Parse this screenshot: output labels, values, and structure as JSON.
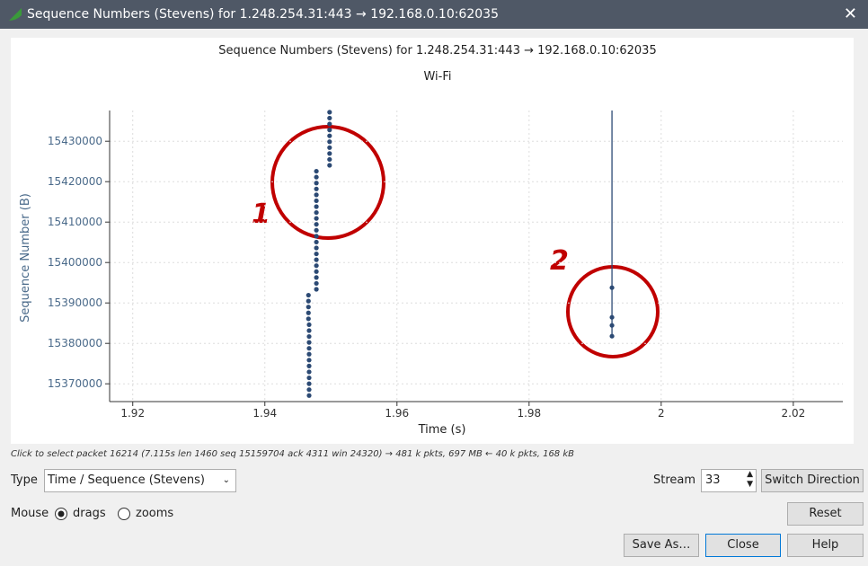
{
  "window": {
    "title": "Sequence Numbers (Stevens) for 1.248.254.31:443 → 192.168.0.10:62035"
  },
  "chart_data": {
    "type": "scatter",
    "title": "Sequence Numbers (Stevens) for 1.248.254.31:443 → 192.168.0.10:62035",
    "subtitle": "Wi-Fi",
    "x_label": "Time (s)",
    "y_label": "Sequence Number (B)",
    "xlim": [
      1.9165,
      2.0275
    ],
    "ylim": [
      15365600,
      15437600
    ],
    "xticks": [
      1.92,
      1.94,
      1.96,
      1.98,
      2,
      2.02
    ],
    "yticks": [
      15370000,
      15380000,
      15390000,
      15400000,
      15410000,
      15420000,
      15430000
    ],
    "grid": true,
    "series": [
      {
        "color": "#2c4a74",
        "x": [
          1.9467,
          1.9467,
          1.9467,
          1.9467,
          1.9467,
          1.9467,
          1.9467,
          1.9467,
          1.9467,
          1.9467,
          1.9467,
          1.9467,
          1.9467,
          1.9466,
          1.9466,
          1.9466,
          1.9466,
          1.9466
        ],
        "values": [
          15367100,
          15368560,
          15370020,
          15371480,
          15372940,
          15374400,
          15375860,
          15377320,
          15378780,
          15380240,
          15381700,
          15383160,
          15384620,
          15386080,
          15387540,
          15389000,
          15390460,
          15391920
        ]
      },
      {
        "color": "#2c4a74",
        "x": [
          1.9478,
          1.9478,
          1.9478,
          1.9478,
          1.9478,
          1.9478,
          1.9478,
          1.9478,
          1.9478,
          1.9478,
          1.9478,
          1.9478,
          1.9478,
          1.9478,
          1.9478,
          1.9478,
          1.9478,
          1.9478,
          1.9478,
          1.9478,
          1.9478
        ],
        "values": [
          15393380,
          15394840,
          15396300,
          15397760,
          15399220,
          15400680,
          15402140,
          15403600,
          15405060,
          15406520,
          15407980,
          15409440,
          15410900,
          15412360,
          15413820,
          15415280,
          15416740,
          15418200,
          15419660,
          15421120,
          15422580
        ]
      },
      {
        "color": "#2c4a74",
        "x": [
          1.9498,
          1.9498,
          1.9498,
          1.9498,
          1.9498,
          1.9498,
          1.9498,
          1.9498,
          1.9498,
          1.9498
        ],
        "values": [
          15424040,
          15425500,
          15426960,
          15428420,
          15429880,
          15431340,
          15432800,
          15434260,
          15435720,
          15437180
        ]
      },
      {
        "color": "#2c4a74",
        "line": true,
        "x": [
          1.99255,
          1.99255
        ],
        "values": [
          15381780,
          15437600
        ]
      },
      {
        "color": "#2c4a74",
        "x": [
          1.99255,
          1.99255,
          1.99255,
          1.99255
        ],
        "values": [
          15381780,
          15384440,
          15386440,
          15393780
        ]
      }
    ],
    "annotations": [
      "1",
      "2"
    ]
  },
  "status": "Click to select packet 16214 (7.115s len 1460 seq 15159704 ack 4311 win 24320) → 481 k pkts, 697 MB ← 40 k pkts, 168 kB",
  "controls": {
    "type_label": "Type",
    "type_value": "Time / Sequence (Stevens)",
    "stream_label": "Stream",
    "stream_value": "33",
    "switch": "Switch Direction",
    "mouse_label": "Mouse",
    "drags": "drags",
    "zooms": "zooms",
    "reset": "Reset",
    "save": "Save As…",
    "close": "Close",
    "help": "Help"
  }
}
